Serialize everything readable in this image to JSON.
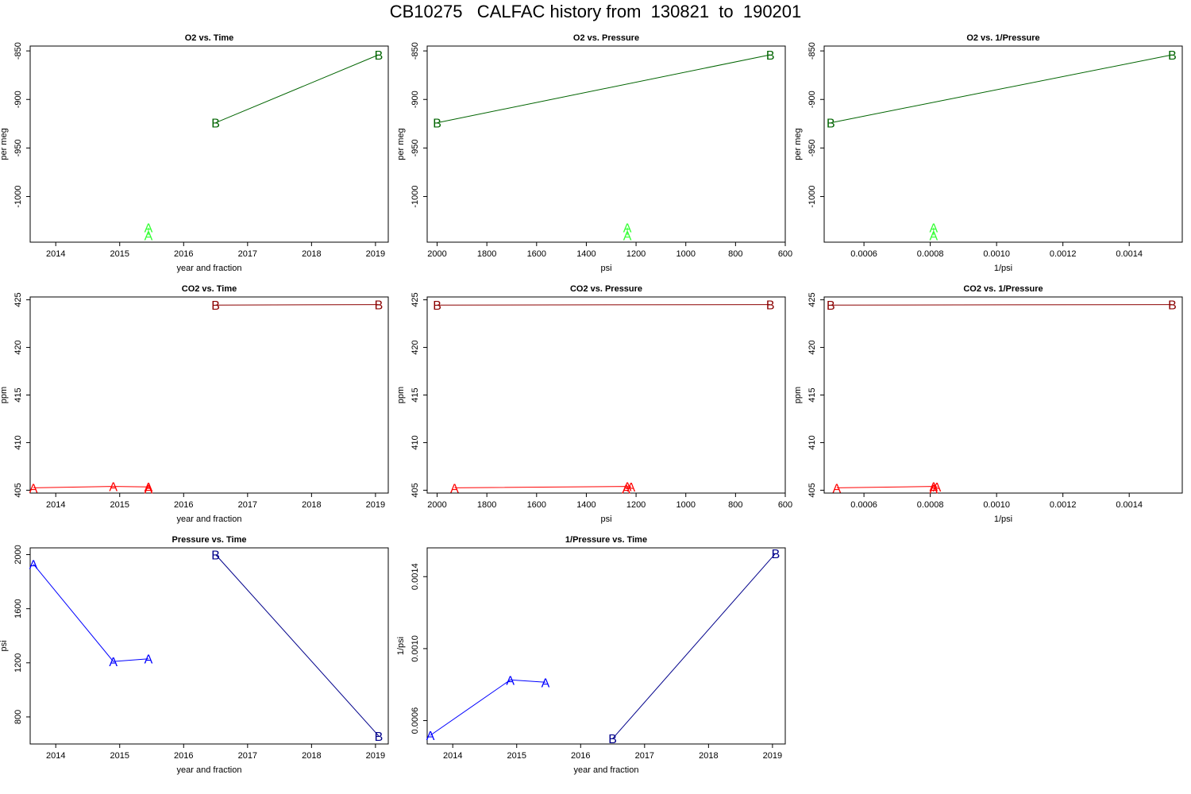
{
  "page": {
    "title": "CB10275   CALFAC history from  130821  to  190201"
  },
  "chart_data": [
    {
      "type": "line",
      "title": "O2 vs. Time",
      "xlabel": "year and fraction",
      "ylabel": "per meg",
      "xlim": [
        2013.6,
        2019.2
      ],
      "ylim": [
        -1047,
        -845
      ],
      "y_reversed": false,
      "x_reversed": false,
      "xticks": [
        2014,
        2015,
        2016,
        2017,
        2018,
        2019
      ],
      "xtick_labels": [
        "2014",
        "2015",
        "2016",
        "2017",
        "2018",
        "2019"
      ],
      "yticks": [
        -850,
        -900,
        -950,
        -1000
      ],
      "ytick_labels": [
        "-850",
        "-900",
        "-950",
        "-1000"
      ],
      "series": [
        {
          "color": "#33ff33",
          "marker": "A",
          "x": [
            2015.45,
            2015.45
          ],
          "y": [
            -1032,
            -1040
          ]
        },
        {
          "color": "#006400",
          "marker": "B",
          "x": [
            2016.5,
            2019.05
          ],
          "y": [
            -924,
            -854
          ]
        }
      ]
    },
    {
      "type": "line",
      "title": "O2 vs. Pressure",
      "xlabel": "psi",
      "ylabel": "per meg",
      "xlim": [
        2040,
        600
      ],
      "ylim": [
        -1047,
        -845
      ],
      "x_reversed": true,
      "xticks": [
        2000,
        1800,
        1600,
        1400,
        1200,
        1000,
        800,
        600
      ],
      "xtick_labels": [
        "2000",
        "1800",
        "1600",
        "1400",
        "1200",
        "1000",
        "800",
        "600"
      ],
      "yticks": [
        -850,
        -900,
        -950,
        -1000
      ],
      "ytick_labels": [
        "-850",
        "-900",
        "-950",
        "-1000"
      ],
      "series": [
        {
          "color": "#33ff33",
          "marker": "A",
          "x": [
            1235,
            1235
          ],
          "y": [
            -1032,
            -1040
          ]
        },
        {
          "color": "#006400",
          "marker": "B",
          "x": [
            2000,
            660
          ],
          "y": [
            -924,
            -854
          ]
        }
      ]
    },
    {
      "type": "line",
      "title": "O2 vs. 1/Pressure",
      "xlabel": "1/psi",
      "ylabel": "per meg",
      "xlim": [
        0.00048,
        0.00156
      ],
      "ylim": [
        -1047,
        -845
      ],
      "xticks": [
        0.0006,
        0.0008,
        0.001,
        0.0012,
        0.0014
      ],
      "xtick_labels": [
        "0.0006",
        "0.0008",
        "0.0010",
        "0.0012",
        "0.0014"
      ],
      "yticks": [
        -850,
        -900,
        -950,
        -1000
      ],
      "ytick_labels": [
        "-850",
        "-900",
        "-950",
        "-1000"
      ],
      "series": [
        {
          "color": "#33ff33",
          "marker": "A",
          "x": [
            0.00081,
            0.00081
          ],
          "y": [
            -1032,
            -1040
          ]
        },
        {
          "color": "#006400",
          "marker": "B",
          "x": [
            0.0005,
            0.00153
          ],
          "y": [
            -924,
            -854
          ]
        }
      ]
    },
    {
      "type": "line",
      "title": "CO2 vs. Time",
      "xlabel": "year and fraction",
      "ylabel": "ppm",
      "xlim": [
        2013.6,
        2019.2
      ],
      "ylim": [
        404.7,
        425.3
      ],
      "xticks": [
        2014,
        2015,
        2016,
        2017,
        2018,
        2019
      ],
      "xtick_labels": [
        "2014",
        "2015",
        "2016",
        "2017",
        "2018",
        "2019"
      ],
      "yticks": [
        405,
        410,
        415,
        420,
        425
      ],
      "ytick_labels": [
        "405",
        "410",
        "415",
        "420",
        "425"
      ],
      "series": [
        {
          "color": "#ff0000",
          "marker": "A",
          "x": [
            2013.65,
            2014.9,
            2015.45,
            2015.45
          ],
          "y": [
            405.25,
            405.4,
            405.35,
            405.15
          ]
        },
        {
          "color": "#8b0000",
          "marker": "B",
          "x": [
            2016.5,
            2019.05
          ],
          "y": [
            424.45,
            424.5
          ]
        }
      ]
    },
    {
      "type": "line",
      "title": "CO2 vs. Pressure",
      "xlabel": "psi",
      "ylabel": "ppm",
      "xlim": [
        2040,
        600
      ],
      "ylim": [
        404.7,
        425.3
      ],
      "x_reversed": true,
      "xticks": [
        2000,
        1800,
        1600,
        1400,
        1200,
        1000,
        800,
        600
      ],
      "xtick_labels": [
        "2000",
        "1800",
        "1600",
        "1400",
        "1200",
        "1000",
        "800",
        "600"
      ],
      "yticks": [
        405,
        410,
        415,
        420,
        425
      ],
      "ytick_labels": [
        "405",
        "410",
        "415",
        "420",
        "425"
      ],
      "series": [
        {
          "color": "#ff0000",
          "marker": "A",
          "x": [
            1930,
            1235,
            1220,
            1240
          ],
          "y": [
            405.25,
            405.4,
            405.35,
            405.15
          ]
        },
        {
          "color": "#8b0000",
          "marker": "B",
          "x": [
            2000,
            660
          ],
          "y": [
            424.45,
            424.5
          ]
        }
      ]
    },
    {
      "type": "line",
      "title": "CO2 vs. 1/Pressure",
      "xlabel": "1/psi",
      "ylabel": "ppm",
      "xlim": [
        0.00048,
        0.00156
      ],
      "ylim": [
        404.7,
        425.3
      ],
      "xticks": [
        0.0006,
        0.0008,
        0.001,
        0.0012,
        0.0014
      ],
      "xtick_labels": [
        "0.0006",
        "0.0008",
        "0.0010",
        "0.0012",
        "0.0014"
      ],
      "yticks": [
        405,
        410,
        415,
        420,
        425
      ],
      "ytick_labels": [
        "405",
        "410",
        "415",
        "420",
        "425"
      ],
      "series": [
        {
          "color": "#ff0000",
          "marker": "A",
          "x": [
            0.000518,
            0.00081,
            0.00082,
            0.00081
          ],
          "y": [
            405.25,
            405.4,
            405.35,
            405.15
          ]
        },
        {
          "color": "#8b0000",
          "marker": "B",
          "x": [
            0.0005,
            0.00153
          ],
          "y": [
            424.45,
            424.5
          ]
        }
      ]
    },
    {
      "type": "line",
      "title": "Pressure vs. Time",
      "xlabel": "year and fraction",
      "ylabel": "psi",
      "xlim": [
        2013.6,
        2019.2
      ],
      "ylim": [
        600,
        2050
      ],
      "xticks": [
        2014,
        2015,
        2016,
        2017,
        2018,
        2019
      ],
      "xtick_labels": [
        "2014",
        "2015",
        "2016",
        "2017",
        "2018",
        "2019"
      ],
      "yticks": [
        800,
        1200,
        1600,
        2000
      ],
      "ytick_labels": [
        "800",
        "1200",
        "1600",
        "2000"
      ],
      "series": [
        {
          "color": "#0000ff",
          "marker": "A",
          "x": [
            2013.65,
            2014.9,
            2015.45
          ],
          "y": [
            1930,
            1210,
            1230
          ]
        },
        {
          "color": "#00008b",
          "marker": "B",
          "x": [
            2016.5,
            2019.05
          ],
          "y": [
            2000,
            660
          ]
        }
      ]
    },
    {
      "type": "line",
      "title": "1/Pressure vs. Time",
      "xlabel": "year and fraction",
      "ylabel": "1/psi",
      "xlim": [
        2013.6,
        2019.2
      ],
      "ylim": [
        0.00047,
        0.00156
      ],
      "xticks": [
        2014,
        2015,
        2016,
        2017,
        2018,
        2019
      ],
      "xtick_labels": [
        "2014",
        "2015",
        "2016",
        "2017",
        "2018",
        "2019"
      ],
      "yticks": [
        0.0006,
        0.001,
        0.0014
      ],
      "ytick_labels": [
        "0.0006",
        "0.0010",
        "0.0014"
      ],
      "series": [
        {
          "color": "#0000ff",
          "marker": "A",
          "x": [
            2013.65,
            2014.9,
            2015.45
          ],
          "y": [
            0.000518,
            0.000826,
            0.000813
          ]
        },
        {
          "color": "#00008b",
          "marker": "B",
          "x": [
            2016.5,
            2019.05
          ],
          "y": [
            0.0005,
            0.00153
          ]
        }
      ]
    }
  ]
}
